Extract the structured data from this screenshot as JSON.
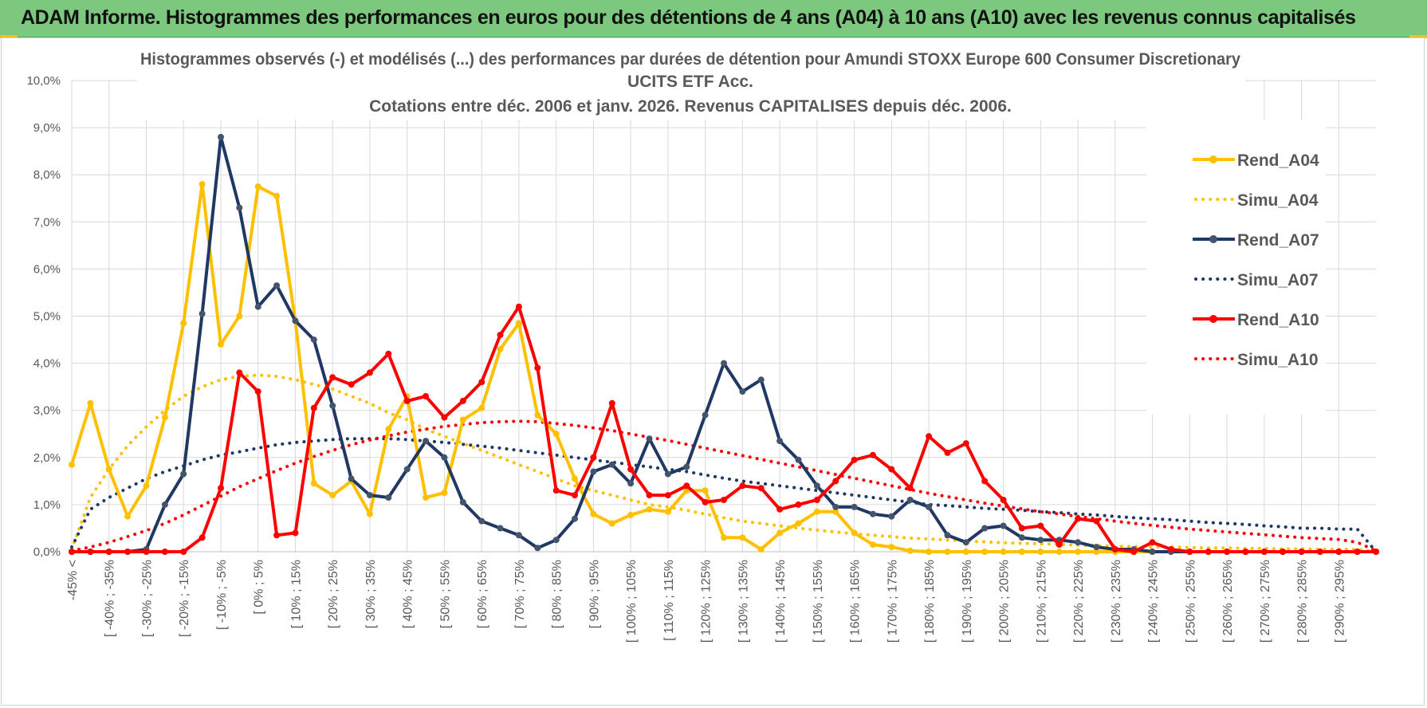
{
  "banner": {
    "title": "ADAM Informe. Histogrammes des performances en euros pour des détentions de 4 ans (A04) à 10 ans (A10) avec les revenus connus capitalisés"
  },
  "colors": {
    "banner_bg": "#7dc87f",
    "A04": "#ffc000",
    "A07": "#1f3864",
    "A10": "#ff0000"
  },
  "chart_data": {
    "type": "line",
    "title": [
      "Histogrammes observés (-) et modélisés (...) des performances par durées de détention pour Amundi STOXX Europe 600 Consumer Discretionary",
      "UCITS ETF Acc.",
      "Cotations entre déc. 2006 et janv. 2026. Revenus CAPITALISES depuis déc. 2006."
    ],
    "xlabel": "",
    "ylabel": "",
    "ylim": [
      0,
      10
    ],
    "y_unit": "%",
    "y_ticks": [
      "0,0%",
      "1,0%",
      "2,0%",
      "3,0%",
      "4,0%",
      "5,0%",
      "6,0%",
      "7,0%",
      "8,0%",
      "9,0%",
      "10,0%"
    ],
    "x_tick_labels": [
      "-45% <",
      "[ -40% ; -35%",
      "[ -30% ; -25%",
      "[ -20% ; -15%",
      "[ -10% ; -5%",
      "[ 0% ; 5%",
      "[ 10% ; 15%",
      "[ 20% ; 25%",
      "[ 30% ; 35%",
      "[ 40% ; 45%",
      "[ 50% ; 55%",
      "[ 60% ; 65%",
      "[ 70% ; 75%",
      "[ 80% ; 85%",
      "[ 90% ; 95%",
      "[ 100% ; 105%",
      "[ 110% ; 115%",
      "[ 120% ; 125%",
      "[ 130% ; 135%",
      "[ 140% ; 145%",
      "[ 150% ; 155%",
      "[ 160% ; 165%",
      "[ 170% ; 175%",
      "[ 180% ; 185%",
      "[ 190% ; 195%",
      "[ 200% ; 205%",
      "[ 210% ; 215%",
      "[ 220% ; 225%",
      "[ 230% ; 235%",
      "[ 240% ; 245%",
      "[ 250% ; 255%",
      "[ 260% ; 265%",
      "[ 270% ; 275%",
      "[ 280% ; 285%",
      "[ 290% ; 295%"
    ],
    "grid": true,
    "legend_position": "right",
    "series": [
      {
        "name": "Rend_A04",
        "style": "solid",
        "color": "#ffc000",
        "values": [
          1.85,
          3.15,
          1.75,
          0.75,
          1.4,
          2.85,
          4.85,
          7.8,
          4.4,
          5.0,
          7.75,
          7.55,
          4.9,
          1.45,
          1.2,
          1.5,
          0.8,
          2.6,
          3.3,
          1.15,
          1.25,
          2.8,
          3.05,
          4.3,
          4.85,
          2.9,
          2.5,
          1.55,
          0.8,
          0.6,
          0.78,
          0.9,
          0.85,
          1.3,
          1.3,
          0.3,
          0.3,
          0.05,
          0.4,
          0.6,
          0.85,
          0.85,
          0.4,
          0.15,
          0.1,
          0.02,
          0,
          0,
          0,
          0,
          0,
          0,
          0,
          0,
          0,
          0,
          0,
          0,
          0,
          0,
          0,
          0,
          0,
          0,
          0,
          0,
          0,
          0,
          0,
          0,
          0
        ]
      },
      {
        "name": "Simu_A04",
        "style": "dotted",
        "color": "#ffc000",
        "values": [
          0.05,
          1.15,
          1.75,
          2.25,
          2.65,
          3.0,
          3.3,
          3.5,
          3.65,
          3.72,
          3.75,
          3.72,
          3.65,
          3.55,
          3.45,
          3.3,
          3.15,
          2.95,
          2.8,
          2.6,
          2.45,
          2.3,
          2.15,
          2.0,
          1.85,
          1.7,
          1.55,
          1.4,
          1.3,
          1.2,
          1.1,
          1.0,
          0.95,
          0.88,
          0.8,
          0.72,
          0.65,
          0.6,
          0.55,
          0.5,
          0.46,
          0.42,
          0.38,
          0.35,
          0.32,
          0.29,
          0.27,
          0.25,
          0.23,
          0.21,
          0.19,
          0.18,
          0.17,
          0.16,
          0.14,
          0.13,
          0.12,
          0.11,
          0.1,
          0.1,
          0.09,
          0.08,
          0.08,
          0.07,
          0.07,
          0.06,
          0.06,
          0.05,
          0.05,
          0.05,
          0.0
        ]
      },
      {
        "name": "Rend_A07",
        "style": "solid",
        "color": "#1f3864",
        "values": [
          0,
          0,
          0,
          0,
          0.05,
          1.0,
          1.65,
          5.05,
          8.8,
          7.3,
          5.2,
          5.65,
          4.9,
          4.5,
          3.1,
          1.55,
          1.2,
          1.15,
          1.75,
          2.35,
          2.0,
          1.05,
          0.65,
          0.5,
          0.35,
          0.08,
          0.25,
          0.7,
          1.7,
          1.85,
          1.45,
          2.4,
          1.65,
          1.8,
          2.9,
          4.0,
          3.4,
          3.65,
          2.35,
          1.95,
          1.4,
          0.95,
          0.95,
          0.8,
          0.75,
          1.1,
          0.95,
          0.35,
          0.2,
          0.5,
          0.55,
          0.3,
          0.25,
          0.25,
          0.2,
          0.1,
          0.05,
          0.05,
          0,
          0,
          0,
          0,
          0,
          0,
          0,
          0,
          0,
          0,
          0,
          0,
          0
        ]
      },
      {
        "name": "Simu_A07",
        "style": "dotted",
        "color": "#1f3864",
        "values": [
          0.1,
          0.9,
          1.15,
          1.35,
          1.55,
          1.7,
          1.82,
          1.95,
          2.05,
          2.12,
          2.2,
          2.27,
          2.32,
          2.35,
          2.38,
          2.4,
          2.4,
          2.4,
          2.38,
          2.35,
          2.32,
          2.28,
          2.24,
          2.2,
          2.15,
          2.1,
          2.05,
          2.0,
          1.95,
          1.9,
          1.85,
          1.8,
          1.75,
          1.7,
          1.63,
          1.56,
          1.5,
          1.45,
          1.4,
          1.35,
          1.3,
          1.25,
          1.2,
          1.15,
          1.1,
          1.05,
          1.0,
          0.98,
          0.95,
          0.92,
          0.9,
          0.88,
          0.85,
          0.83,
          0.8,
          0.78,
          0.75,
          0.72,
          0.7,
          0.68,
          0.65,
          0.62,
          0.6,
          0.58,
          0.55,
          0.53,
          0.5,
          0.5,
          0.48,
          0.48,
          0.0
        ]
      },
      {
        "name": "Rend_A10",
        "style": "solid",
        "color": "#ff0000",
        "values": [
          0,
          0,
          0,
          0,
          0,
          0,
          0,
          0.3,
          1.35,
          3.8,
          3.4,
          0.35,
          0.4,
          3.05,
          3.7,
          3.55,
          3.8,
          4.2,
          3.2,
          3.3,
          2.85,
          3.2,
          3.6,
          4.6,
          5.2,
          3.9,
          1.3,
          1.2,
          2.0,
          3.15,
          1.75,
          1.2,
          1.2,
          1.4,
          1.05,
          1.1,
          1.4,
          1.35,
          0.9,
          1.0,
          1.1,
          1.5,
          1.95,
          2.05,
          1.75,
          1.35,
          2.45,
          2.1,
          2.3,
          1.5,
          1.1,
          0.5,
          0.55,
          0.15,
          0.7,
          0.65,
          0.05,
          0,
          0.2,
          0.05,
          0,
          0,
          0,
          0,
          0,
          0,
          0,
          0,
          0,
          0,
          0
        ]
      },
      {
        "name": "Simu_A10",
        "style": "dotted",
        "color": "#ff0000",
        "values": [
          0.02,
          0.1,
          0.2,
          0.32,
          0.45,
          0.6,
          0.78,
          0.98,
          1.18,
          1.38,
          1.55,
          1.72,
          1.88,
          2.02,
          2.15,
          2.27,
          2.37,
          2.46,
          2.54,
          2.6,
          2.66,
          2.7,
          2.74,
          2.76,
          2.77,
          2.76,
          2.72,
          2.68,
          2.63,
          2.57,
          2.5,
          2.43,
          2.36,
          2.28,
          2.2,
          2.12,
          2.04,
          1.96,
          1.88,
          1.8,
          1.72,
          1.64,
          1.56,
          1.48,
          1.4,
          1.32,
          1.24,
          1.17,
          1.1,
          1.03,
          0.97,
          0.91,
          0.85,
          0.8,
          0.75,
          0.7,
          0.65,
          0.6,
          0.56,
          0.52,
          0.48,
          0.45,
          0.42,
          0.39,
          0.36,
          0.33,
          0.3,
          0.28,
          0.26,
          0.2,
          0.02
        ]
      }
    ]
  }
}
